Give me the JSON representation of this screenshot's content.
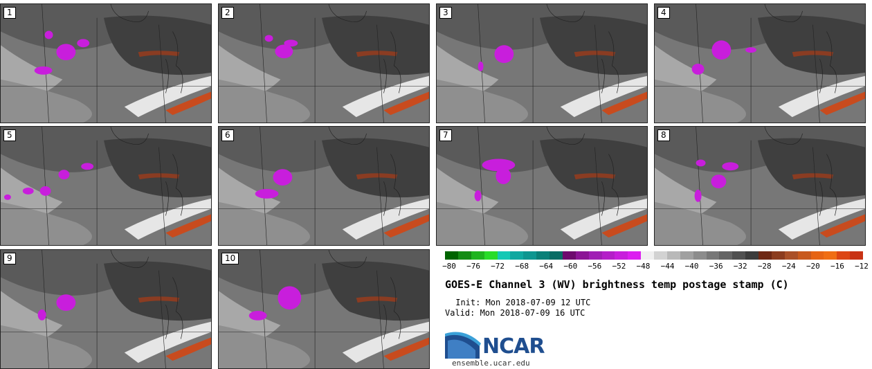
{
  "panels": [
    {
      "label": "1"
    },
    {
      "label": "2"
    },
    {
      "label": "3"
    },
    {
      "label": "4"
    },
    {
      "label": "5"
    },
    {
      "label": "6"
    },
    {
      "label": "7"
    },
    {
      "label": "8"
    },
    {
      "label": "9"
    },
    {
      "label": "10"
    }
  ],
  "colorbar": {
    "colors": [
      "#006400",
      "#148c14",
      "#1eb41e",
      "#28dc28",
      "#14c8b4",
      "#10a8a0",
      "#0e9690",
      "#0a8078",
      "#086c64",
      "#6e0a6e",
      "#8c1496",
      "#a01eb4",
      "#b41ec8",
      "#c81edc",
      "#dc1ef0",
      "#f0f0f0",
      "#d2d2d2",
      "#b9b9b9",
      "#a0a0a0",
      "#8c8c8c",
      "#787878",
      "#646464",
      "#505050",
      "#3c3c3c",
      "#6e2814",
      "#8c3c1e",
      "#aa5028",
      "#c85a1e",
      "#e66414",
      "#f06e14",
      "#dc4614",
      "#c83214"
    ],
    "ticks": [
      "−80",
      "−76",
      "−72",
      "−68",
      "−64",
      "−60",
      "−56",
      "−52",
      "−48",
      "−44",
      "−40",
      "−36",
      "−32",
      "−28",
      "−24",
      "−20",
      "−16",
      "−12"
    ]
  },
  "title": "GOES-E Channel 3 (WV) brightness temp postage stamp (C)",
  "init": " Init: Mon 2018-07-09 12 UTC",
  "valid": "Valid: Mon 2018-07-09 16 UTC",
  "logo": {
    "text": "NCAR",
    "url": "ensemble.ucar.edu"
  }
}
